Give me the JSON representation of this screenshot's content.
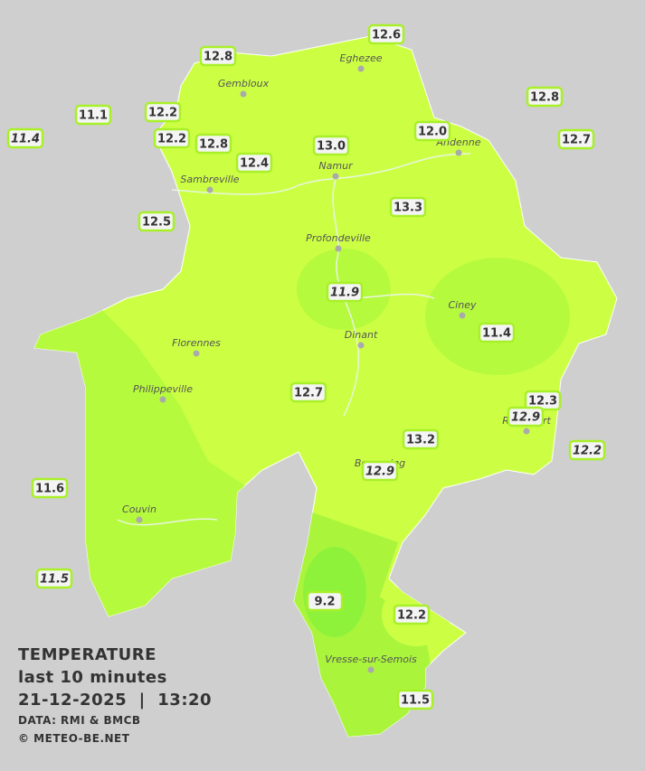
{
  "legend": {
    "title": "TEMPERATURE",
    "period": "last 10 minutes",
    "datetime": "21-12-2025  |  13:20",
    "source": "DATA: RMI & BMCB",
    "copyright": "© METEO-BE.NET"
  },
  "cities": [
    "Eghezee",
    "Gembloux",
    "Andenne",
    "Namur",
    "Sambreville",
    "Profondeville",
    "Ciney",
    "Dinant",
    "Florennes",
    "Philippeville",
    "Rochefort",
    "Beauraing",
    "Couvin",
    "Vresse-sur-Semois"
  ],
  "stations": [
    {
      "value": 12.6
    },
    {
      "value": 12.8
    },
    {
      "value": 11.1
    },
    {
      "value": 12.2
    },
    {
      "value": 11.4,
      "italic": true
    },
    {
      "value": 12.2
    },
    {
      "value": 12.8
    },
    {
      "value": 12.4
    },
    {
      "value": 13,
      "label": "13.0"
    },
    {
      "value": 12,
      "label": "12.0"
    },
    {
      "value": 12.8
    },
    {
      "value": 12.7
    },
    {
      "value": 13.3
    },
    {
      "value": 12.5
    },
    {
      "value": 11.9,
      "italic": true
    },
    {
      "value": 11.4
    },
    {
      "value": 12.7
    },
    {
      "value": 12.3
    },
    {
      "value": 12.9,
      "italic": true
    },
    {
      "value": 12.2,
      "italic": true
    },
    {
      "value": 13.2
    },
    {
      "value": 12.9,
      "italic": true
    },
    {
      "value": 11.6
    },
    {
      "value": 11.5,
      "italic": true
    },
    {
      "value": 9.2
    },
    {
      "value": 12.2
    },
    {
      "value": 11.5
    }
  ]
}
